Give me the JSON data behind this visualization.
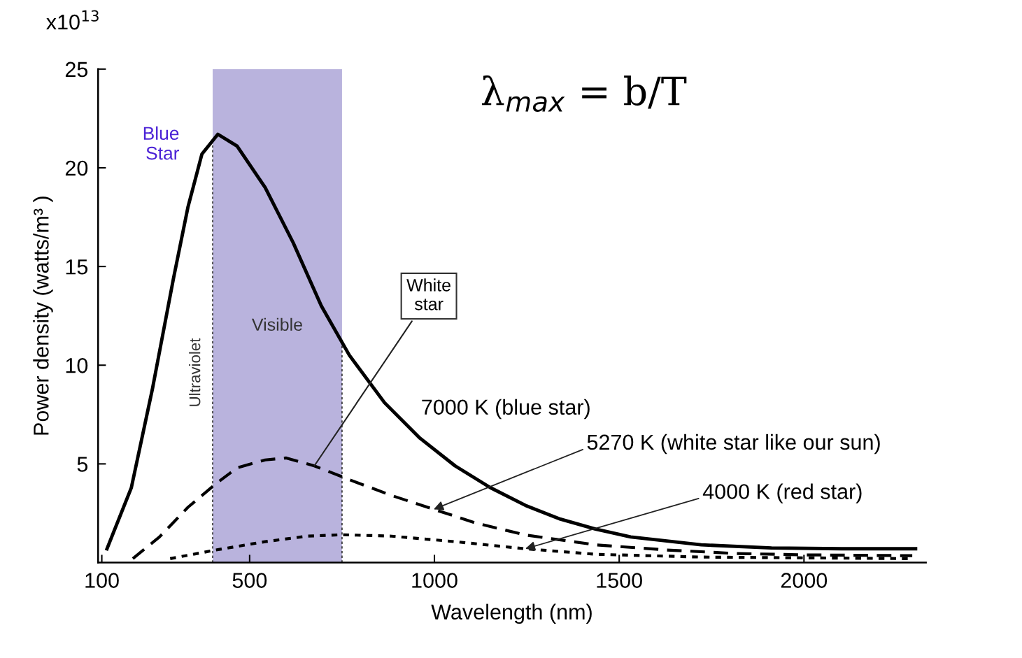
{
  "chart_data": {
    "type": "line",
    "xlabel": "Wavelength (nm)",
    "ylabel": "Power density (watts/m³ )",
    "xlim": [
      90,
      2330
    ],
    "ylim": [
      0,
      25
    ],
    "xticks": [
      100,
      500,
      1000,
      1500,
      2000
    ],
    "yticks": [
      5,
      10,
      15,
      20,
      25
    ],
    "grid": false,
    "legend": false,
    "marker": "none",
    "series": [
      {
        "name": "7000 K (blue star)",
        "color": "#000000",
        "line_style": "solid",
        "x": [
          114,
          180,
          237,
          294,
          333,
          371,
          414,
          466,
          542,
          618,
          694,
          770,
          865,
          961,
          1056,
          1151,
          1246,
          1341,
          1436,
          1531,
          1722,
          1912,
          2102,
          2302
        ],
        "values": [
          0.7,
          3.8,
          8.8,
          14.4,
          18.0,
          20.7,
          21.7,
          21.1,
          19.0,
          16.2,
          13.0,
          10.5,
          8.1,
          6.3,
          4.9,
          3.8,
          2.9,
          2.2,
          1.7,
          1.3,
          0.9,
          0.74,
          0.7,
          0.7
        ]
      },
      {
        "name": "5270 K (white star like our sun)",
        "color": "#000000",
        "line_style": "dashed",
        "x": [
          184,
          256,
          333,
          409,
          466,
          542,
          599,
          675,
          770,
          884,
          998,
          1113,
          1246,
          1436,
          1627,
          1817,
          2007,
          2293
        ],
        "values": [
          0.2,
          1.3,
          2.8,
          4.0,
          4.8,
          5.2,
          5.3,
          4.9,
          4.2,
          3.4,
          2.7,
          2.0,
          1.4,
          0.9,
          0.64,
          0.46,
          0.39,
          0.35
        ]
      },
      {
        "name": "4000 K (red star)",
        "color": "#000000",
        "line_style": "dotted",
        "x": [
          285,
          409,
          542,
          656,
          751,
          884,
          1056,
          1246,
          1436,
          1722,
          2293
        ],
        "values": [
          0.2,
          0.64,
          1.06,
          1.34,
          1.41,
          1.34,
          1.06,
          0.7,
          0.42,
          0.28,
          0.2
        ]
      }
    ],
    "bands": [
      {
        "axis": "x",
        "from": 400,
        "to": 750,
        "label": "Visible",
        "color": "#b9b3dd"
      }
    ],
    "ref_lines": [
      {
        "axis": "x",
        "value": 400,
        "label": "Ultraviolet",
        "line_style": "dotted"
      },
      {
        "axis": "x",
        "value": 750,
        "label": null,
        "line_style": "dotted"
      }
    ],
    "annotations": [
      "x10$^{13}$",
      "λ$_{max}$ = b/T",
      {
        "text": "Blue\nStar",
        "x": 400,
        "y": 21.7
      },
      {
        "text": "White\nstar",
        "x": 675,
        "y": 4.9
      }
    ]
  }
}
